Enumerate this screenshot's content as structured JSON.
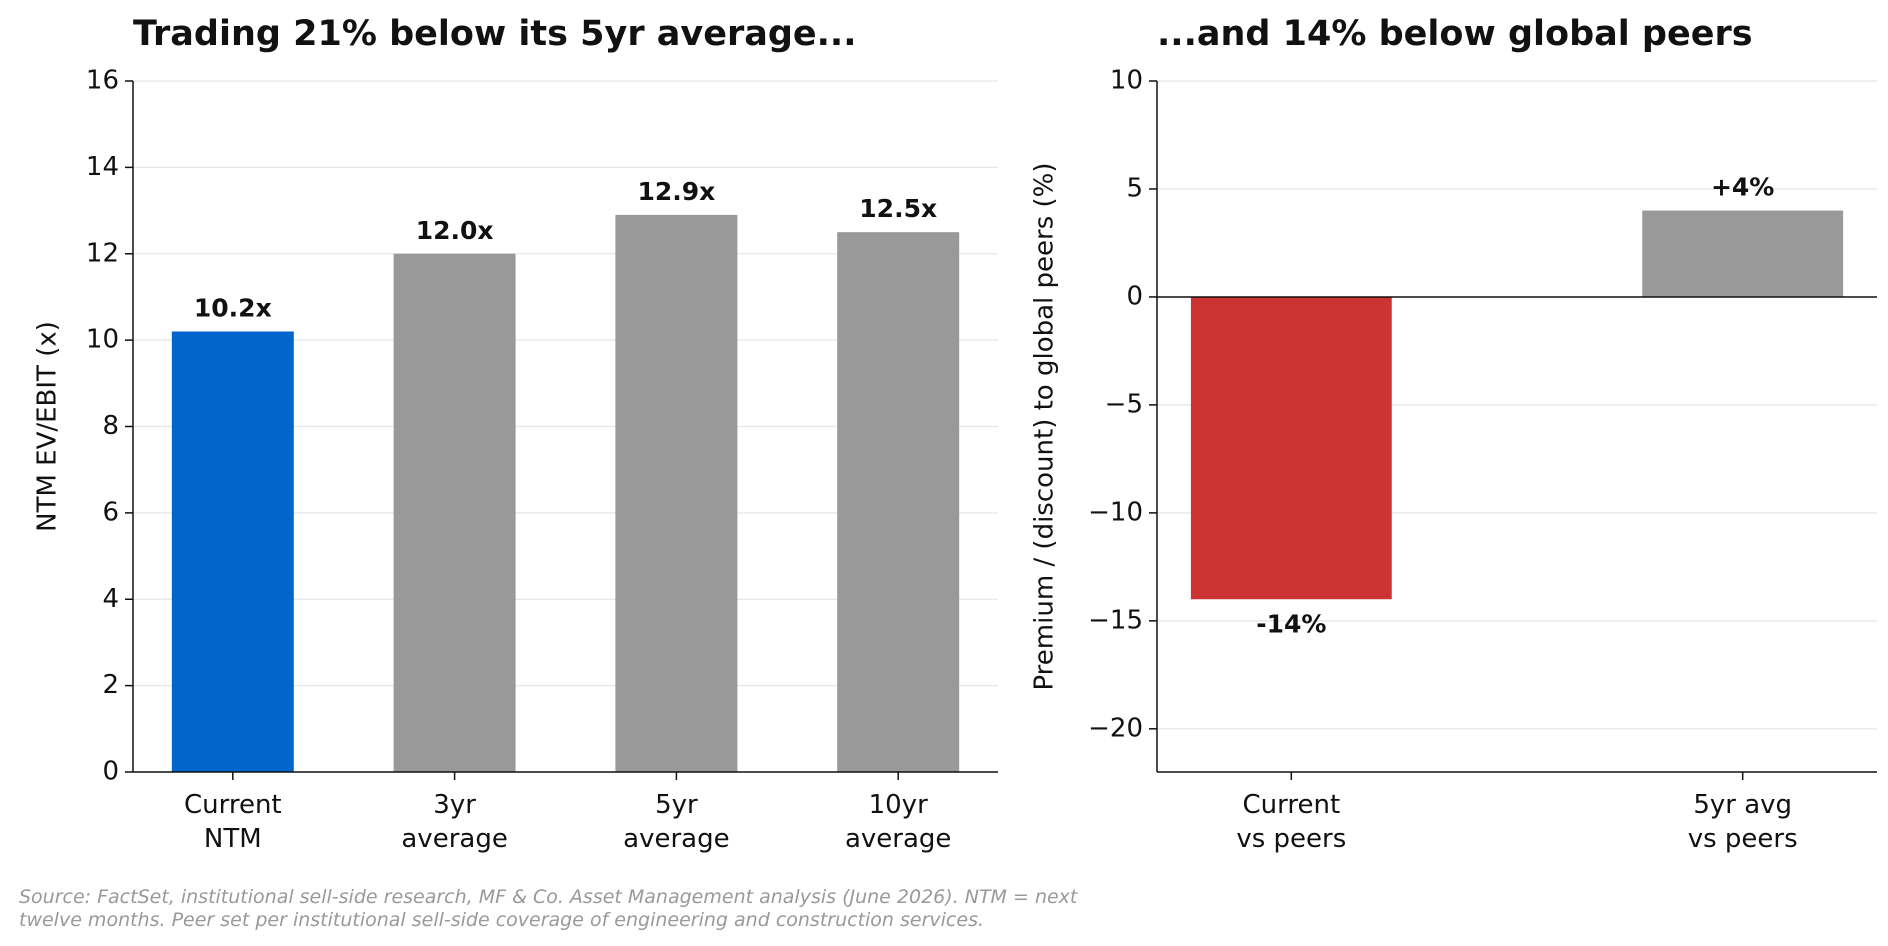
{
  "chart_data": [
    {
      "type": "bar",
      "title": "Trading 21% below its 5yr average...",
      "categories": [
        "Current\nNTM",
        "3yr\naverage",
        "5yr\naverage",
        "10yr\naverage"
      ],
      "values": [
        10.2,
        12.0,
        12.9,
        12.5
      ],
      "value_labels": [
        "10.2x",
        "12.0x",
        "12.9x",
        "12.5x"
      ],
      "colors": [
        "#0066cc",
        "#999999",
        "#999999",
        "#999999"
      ],
      "ylabel": "NTM EV/EBIT (x)",
      "ylim": [
        0,
        16
      ],
      "yticks": [
        0,
        2,
        4,
        6,
        8,
        10,
        12,
        14,
        16
      ],
      "grid": true
    },
    {
      "type": "bar",
      "title": "...and 14% below global peers",
      "categories": [
        "Current\nvs peers",
        "5yr avg\nvs peers"
      ],
      "values": [
        -14,
        4
      ],
      "value_labels": [
        "-14%",
        "+4%"
      ],
      "colors": [
        "#cc3333",
        "#999999"
      ],
      "ylabel": "Premium / (discount) to global peers (%)",
      "ylim": [
        -22,
        10
      ],
      "yticks": [
        {
          "value": -20,
          "label": "−20"
        },
        {
          "value": -15,
          "label": "−15"
        },
        {
          "value": -10,
          "label": "−10"
        },
        {
          "value": -5,
          "label": "−5"
        },
        0,
        5,
        10
      ],
      "grid": true
    }
  ],
  "footnote": "Source: FactSet, institutional sell-side research, MF & Co. Asset Management analysis (June 2026). NTM = next\ntwelve months. Peer set per institutional sell-side coverage of engineering and construction services."
}
